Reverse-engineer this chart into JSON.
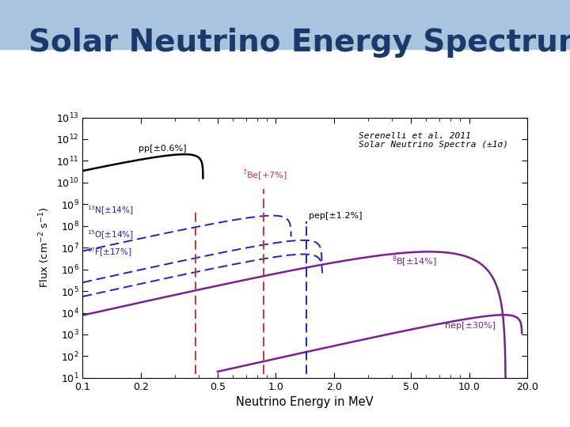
{
  "title": "Solar Neutrino Energy Spectrum",
  "title_color": "#1a3a6b",
  "title_fontsize": 28,
  "xlabel": "Neutrino Energy in MeV",
  "ylabel": "Flux (cm$^{-2}$ s$^{-1}$)",
  "annotation_text": "Serenelli et al. 2011\nSolar Neutrino Spectra (±1σ)",
  "background_slide": "#a8c4de",
  "pp_color": "#000000",
  "Be7_color": "#cc3333",
  "pep_color": "#000000",
  "CNO_color": "#2222bb",
  "B8_color": "#7a2090",
  "hep_color": "#7a2090"
}
